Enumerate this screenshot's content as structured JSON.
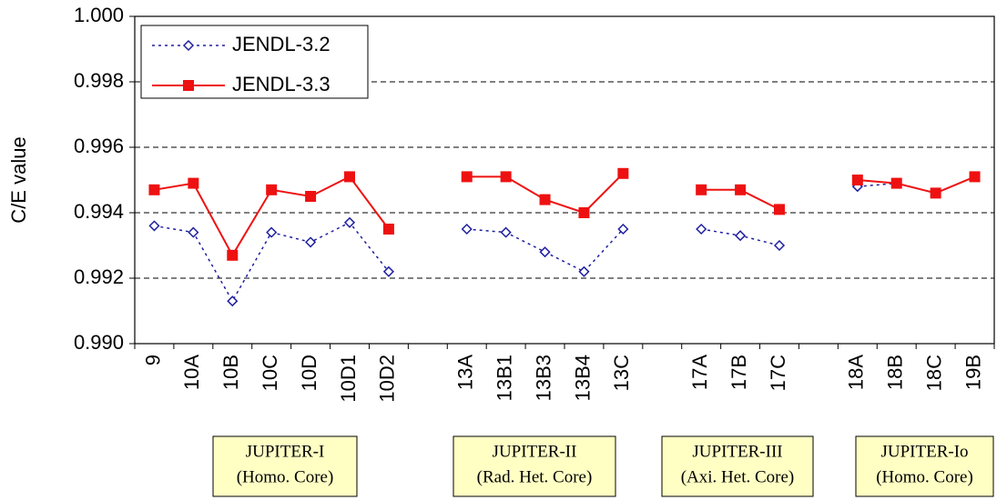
{
  "chart_data": {
    "type": "line",
    "y_label": "C/E value",
    "categories": [
      "9",
      "10A",
      "10B",
      "10C",
      "10D",
      "10D1",
      "10D2",
      null,
      "13A",
      "13B1",
      "13B3",
      "13B4",
      "13C",
      null,
      "17A",
      "17B",
      "17C",
      null,
      "18A",
      "18B",
      "18C",
      "19B"
    ],
    "series": [
      {
        "name": "JENDL-3.2",
        "color": "#1f1f9f",
        "marker": "diamond",
        "dash": true,
        "values": [
          0.9936,
          0.9934,
          0.9913,
          0.9934,
          0.9931,
          0.9937,
          0.9922,
          null,
          0.9935,
          0.9934,
          0.9928,
          0.9922,
          0.9935,
          null,
          0.9935,
          0.9933,
          0.993,
          null,
          0.9948,
          0.9949,
          0.9946,
          0.9951
        ]
      },
      {
        "name": "JENDL-3.3",
        "color": "#ee1111",
        "marker": "square",
        "dash": false,
        "values": [
          0.9947,
          0.9949,
          0.9927,
          0.9947,
          0.9945,
          0.9951,
          0.9935,
          null,
          0.9951,
          0.9951,
          0.9944,
          0.994,
          0.9952,
          null,
          0.9947,
          0.9947,
          0.9941,
          null,
          0.995,
          0.9949,
          0.9946,
          0.9951
        ]
      }
    ],
    "ylim": [
      0.99,
      1.0
    ],
    "yticks": [
      {
        "value": 0.99,
        "label": "0.990"
      },
      {
        "value": 0.992,
        "label": "0.992"
      },
      {
        "value": 0.994,
        "label": "0.994"
      },
      {
        "value": 0.996,
        "label": "0.996"
      },
      {
        "value": 0.998,
        "label": "0.998"
      },
      {
        "value": 1.0,
        "label": "1.000"
      }
    ],
    "grid": true,
    "legend": "upper-left",
    "groups": [
      {
        "name": "JUPITER-I",
        "core": "(Homo. Core)"
      },
      {
        "name": "JUPITER-II",
        "core": "(Rad. Het. Core)"
      },
      {
        "name": "JUPITER-III",
        "core": "(Axi. Het. Core)"
      },
      {
        "name": "JUPITER-Io",
        "core": "(Homo. Core)"
      }
    ]
  }
}
